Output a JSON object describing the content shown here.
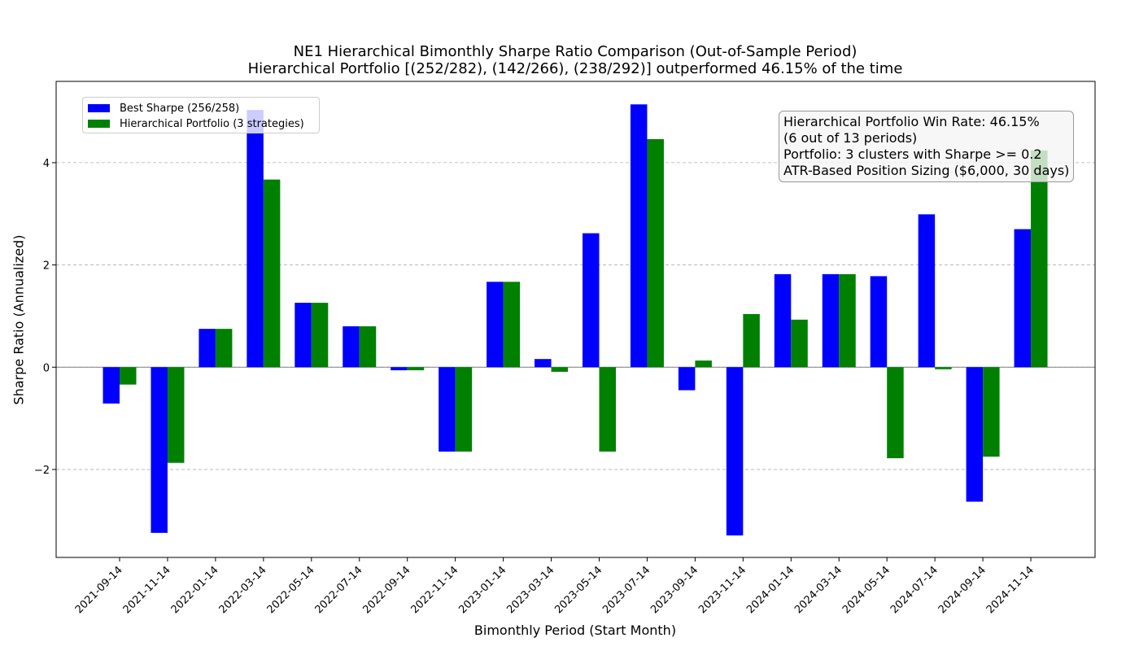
{
  "chart_data": {
    "type": "bar",
    "title": "NE1 Hierarchical Bimonthly Sharpe Ratio Comparison (Out-of-Sample Period)",
    "subtitle": "Hierarchical Portfolio [(252/282), (142/266), (238/292)] outperformed 46.15% of the time",
    "xlabel": "Bimonthly Period (Start Month)",
    "ylabel": "Sharpe Ratio (Annualized)",
    "ylim": [
      -3.72,
      5.59
    ],
    "yticks": [
      -2,
      0,
      2,
      4
    ],
    "grid": "horizontal-dashed",
    "legend_position": "top-left",
    "categories": [
      "2021-09-14",
      "2021-11-14",
      "2022-01-14",
      "2022-03-14",
      "2022-05-14",
      "2022-07-14",
      "2022-09-14",
      "2022-11-14",
      "2023-01-14",
      "2023-03-14",
      "2023-05-14",
      "2023-07-14",
      "2023-09-14",
      "2023-11-14",
      "2024-01-14",
      "2024-03-14",
      "2024-05-14",
      "2024-07-14",
      "2024-09-14",
      "2024-11-14"
    ],
    "series": [
      {
        "name": "Best Sharpe (256/258)",
        "color": "#0000ff",
        "values": [
          -0.71,
          -3.24,
          0.75,
          5.03,
          1.26,
          0.8,
          -0.06,
          -1.65,
          1.67,
          0.16,
          2.62,
          5.14,
          -0.45,
          -3.29,
          1.82,
          1.82,
          1.78,
          2.99,
          -2.63,
          2.7
        ]
      },
      {
        "name": "Hierarchical Portfolio (3 strategies)",
        "color": "#008000",
        "values": [
          -0.34,
          -1.87,
          0.75,
          3.67,
          1.26,
          0.8,
          -0.06,
          -1.65,
          1.67,
          -0.09,
          -1.65,
          4.46,
          0.13,
          1.04,
          0.93,
          1.82,
          -1.78,
          -0.04,
          -1.75,
          4.24
        ]
      }
    ],
    "annotation": [
      "Hierarchical Portfolio Win Rate: 46.15%",
      "(6 out of 13 periods)",
      "Portfolio: 3 clusters with Sharpe >= 0.2",
      "ATR-Based Position Sizing ($6,000, 30 days)"
    ]
  }
}
